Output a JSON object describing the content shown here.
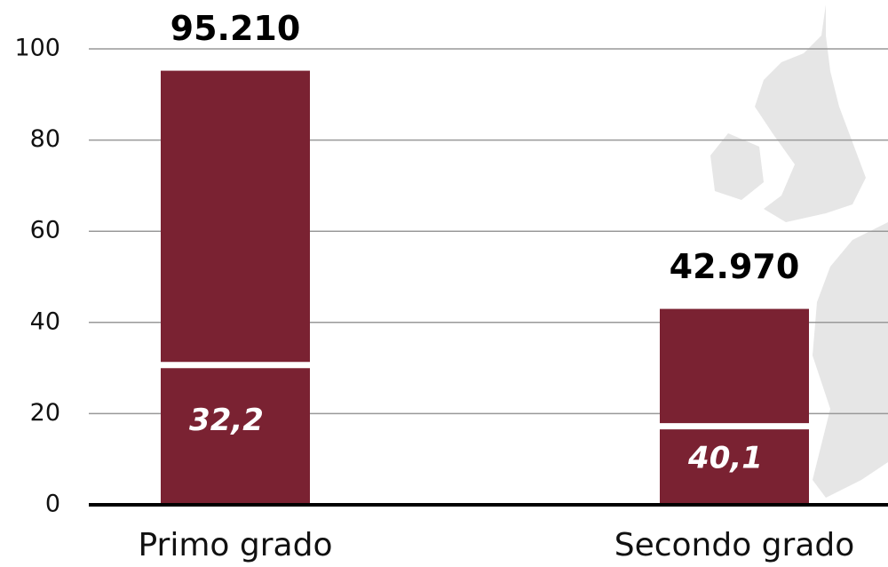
{
  "chart_data": {
    "type": "bar",
    "categories": [
      "Primo grado",
      "Secondo grado"
    ],
    "values": [
      95.21,
      42.97
    ],
    "value_labels": [
      "95.210",
      "42.970"
    ],
    "shares": [
      32.2,
      40.1
    ],
    "share_labels": [
      "32,2",
      "40,1"
    ],
    "color": "#7a2232",
    "ylim": [
      0,
      100
    ],
    "yticks": [
      0,
      20,
      40,
      60,
      80,
      100
    ],
    "grid": true
  }
}
